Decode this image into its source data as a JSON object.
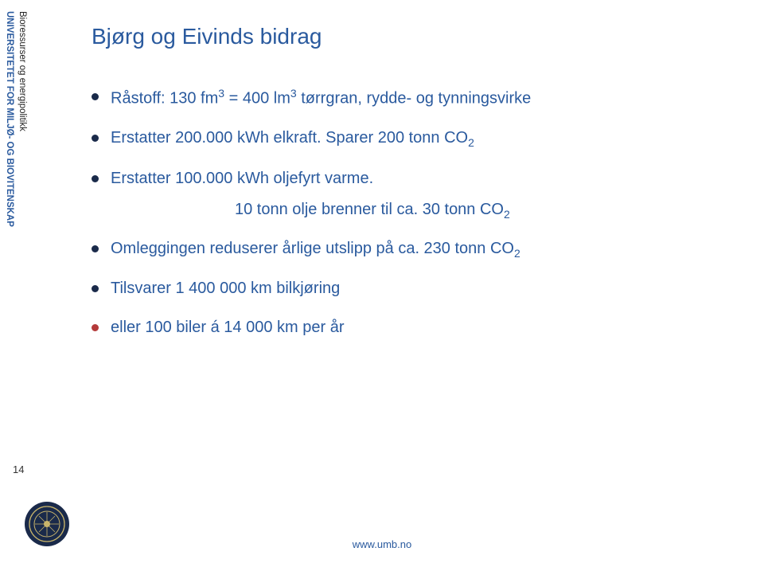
{
  "colors": {
    "title": "#2a5a9e",
    "body": "#2a5a9e",
    "vertical_outer": "#222222",
    "vertical_inner": "#2a5a9e",
    "footer_link": "#2a5a9e",
    "bullet_navy": "#1a2a4a",
    "bullet_red": "#b43a3a"
  },
  "vertical_outer": "Bioressurser og energipolitikk",
  "vertical_inner": "UNIVERSITETET FOR MILJØ- OG BIOVITENSKAP",
  "title": "Bjørg og Eivinds bidrag",
  "bullets": [
    {
      "html": "Råstoff: 130 fm<sup>3</sup> = 400 lm<sup>3</sup> tørrgran, rydde- og tynningsvirke",
      "dot": "navy"
    },
    {
      "html": "Erstatter 200.000 kWh elkraft. Sparer 200 tonn CO<sub>2</sub>",
      "dot": "navy"
    },
    {
      "html": "Erstatter 100.000 kWh oljefyrt varme.",
      "dot": "navy"
    },
    {
      "type": "sub",
      "html": "10 tonn olje brenner til ca. 30 tonn CO<sub>2</sub>"
    },
    {
      "html": "Omleggingen reduserer årlige utslipp på ca. 230 tonn CO<sub>2</sub>",
      "dot": "navy"
    },
    {
      "html": "Tilsvarer 1 400 000 km bilkjøring",
      "dot": "navy"
    },
    {
      "html": "eller 100 biler á 14 000 km per år",
      "dot": "red"
    }
  ],
  "page_number": "14",
  "footer_link": "www.umb.no"
}
